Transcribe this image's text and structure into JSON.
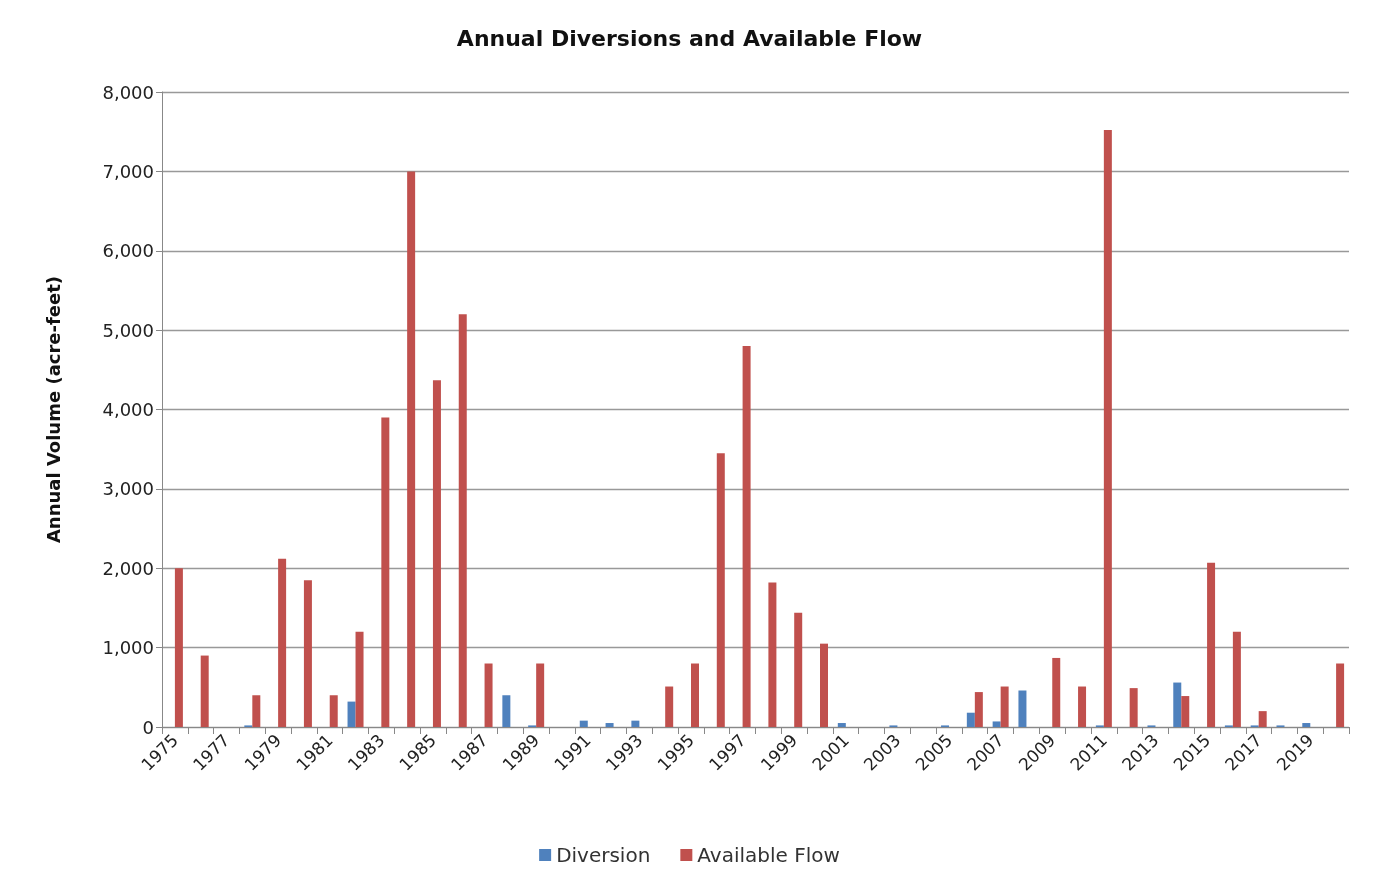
{
  "chart_data": {
    "type": "bar",
    "title": "Annual Diversions and Available Flow",
    "ylabel": "Annual Volume (acre-feet)",
    "categories": [
      "1975",
      null,
      "1977",
      null,
      "1979",
      null,
      "1981",
      null,
      "1983",
      null,
      "1985",
      null,
      "1987",
      null,
      "1989",
      null,
      "1991",
      null,
      "1993",
      null,
      "1995",
      null,
      "1997",
      null,
      "1999",
      null,
      "2001",
      null,
      "2003",
      null,
      "2005",
      null,
      "2007",
      null,
      "2009",
      null,
      "2011",
      null,
      "2013",
      null,
      "2015",
      null,
      "2017",
      null,
      "2019",
      null
    ],
    "series": [
      {
        "name": "Diversion",
        "color": "#4f81bd",
        "values": [
          0,
          0,
          0,
          20,
          0,
          0,
          0,
          320,
          0,
          0,
          0,
          0,
          0,
          400,
          20,
          0,
          80,
          50,
          80,
          0,
          0,
          0,
          0,
          0,
          0,
          0,
          50,
          0,
          20,
          0,
          20,
          180,
          70,
          460,
          0,
          0,
          20,
          0,
          20,
          560,
          0,
          20,
          20,
          20,
          50,
          0
        ]
      },
      {
        "name": "Available Flow",
        "color": "#c0504d",
        "values": [
          2000,
          900,
          0,
          400,
          2120,
          1850,
          400,
          1200,
          3900,
          7000,
          4370,
          5200,
          800,
          0,
          800,
          0,
          0,
          0,
          0,
          510,
          800,
          3450,
          4800,
          1820,
          1440,
          1050,
          0,
          0,
          0,
          0,
          0,
          440,
          510,
          0,
          870,
          510,
          7520,
          490,
          0,
          390,
          2070,
          1200,
          200,
          0,
          0,
          800
        ]
      }
    ],
    "ylim": [
      0,
      8000
    ],
    "yticks": [
      0,
      {
        "value": 1000,
        "label": "1,000"
      },
      {
        "value": 2000,
        "label": "2,000"
      },
      {
        "value": 3000,
        "label": "3,000"
      },
      {
        "value": 4000,
        "label": "4,000"
      },
      {
        "value": 5000,
        "label": "5,000"
      },
      {
        "value": 6000,
        "label": "6,000"
      },
      {
        "value": 7000,
        "label": "7,000"
      },
      {
        "value": 8000,
        "label": "8,000"
      }
    ],
    "grid": "y",
    "legend": "bottom"
  }
}
